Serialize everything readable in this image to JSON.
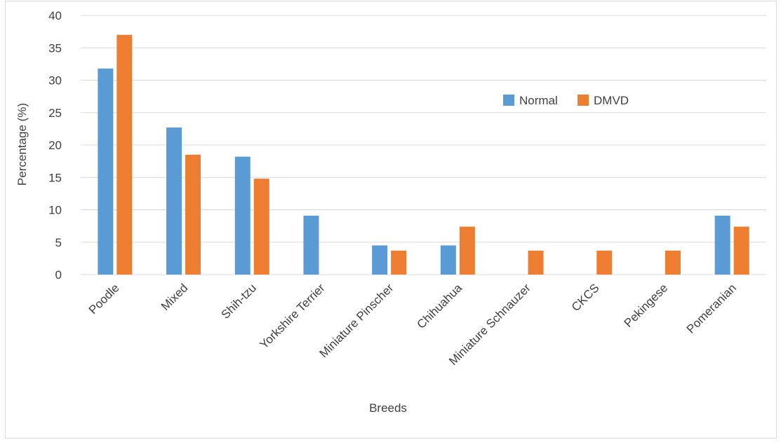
{
  "chart_data": {
    "type": "bar",
    "title": "",
    "xlabel": "Breeds",
    "ylabel": "Percentage (%)",
    "ylim": [
      0,
      40
    ],
    "yticks": [
      0,
      5,
      10,
      15,
      20,
      25,
      30,
      35,
      40
    ],
    "grid": true,
    "legend_position": "right-upper",
    "categories": [
      "Poodle",
      "Mixed",
      "Shih-tzu",
      "Yorkshire Terrier",
      "Miniature Pinscher",
      "Chihuahua",
      "Miniature Schnauzer",
      "CKCS",
      "Pekingese",
      "Pomeranian"
    ],
    "series": [
      {
        "name": "Normal",
        "color": "#5b9bd5",
        "values": [
          31.8,
          22.7,
          18.2,
          9.1,
          4.5,
          4.5,
          0,
          0,
          0,
          9.1
        ]
      },
      {
        "name": "DMVD",
        "color": "#ed7d31",
        "values": [
          37.0,
          18.5,
          14.8,
          0,
          3.7,
          7.4,
          3.7,
          3.7,
          3.7,
          7.4
        ]
      }
    ]
  }
}
